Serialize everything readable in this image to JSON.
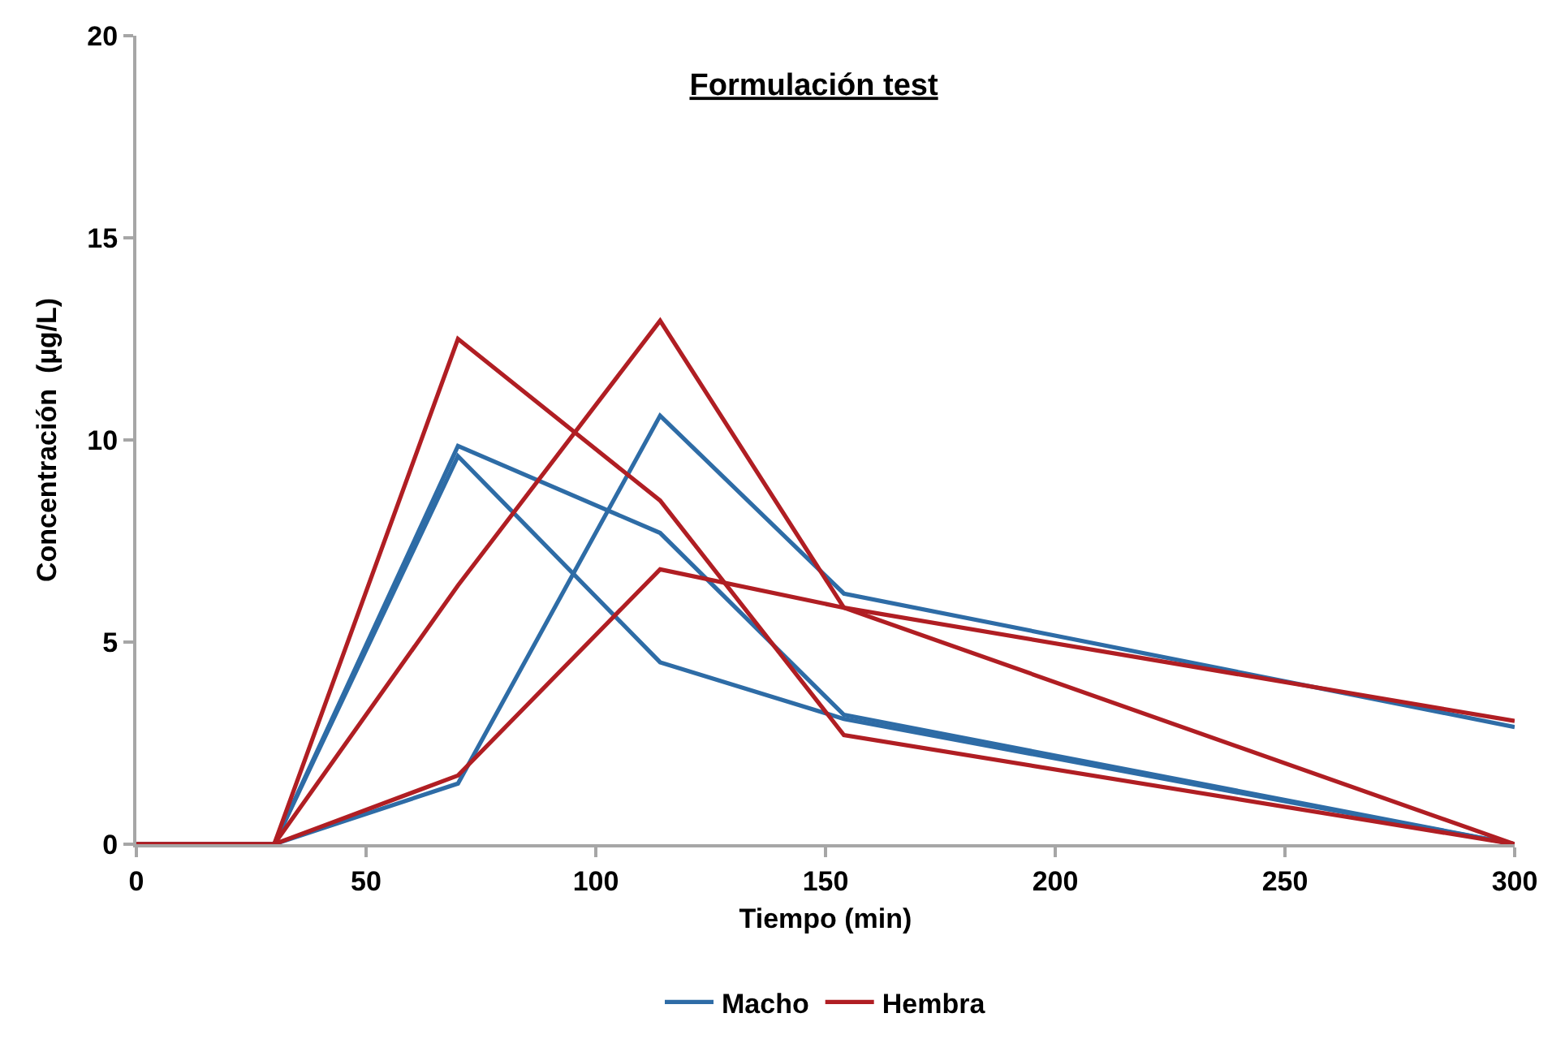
{
  "chart_data": {
    "type": "line",
    "title": "Formulación test",
    "xlabel": "Tiempo (min)",
    "ylabel": "Concentración  (µg/L)",
    "x": [
      0,
      30,
      70,
      114,
      154,
      300
    ],
    "series": [
      {
        "name": "Macho",
        "color": "#2e6ca6",
        "values": [
          0,
          0,
          9.6,
          4.5,
          3.1,
          0
        ]
      },
      {
        "color": "#2e6ca6",
        "values": [
          0,
          0,
          9.85,
          7.7,
          3.2,
          0
        ]
      },
      {
        "color": "#2e6ca6",
        "values": [
          0,
          0,
          1.5,
          10.6,
          6.2,
          2.9
        ]
      },
      {
        "name": "Hembra",
        "color": "#b01e23",
        "values": [
          0,
          0,
          12.5,
          8.5,
          2.7,
          0
        ]
      },
      {
        "color": "#b01e23",
        "values": [
          0,
          0,
          6.4,
          12.95,
          5.85,
          0
        ]
      },
      {
        "color": "#b01e23",
        "values": [
          0,
          0,
          1.7,
          6.8,
          5.85,
          3.05
        ]
      }
    ],
    "xlim": [
      0,
      300
    ],
    "xticks": [
      0,
      50,
      100,
      150,
      200,
      250,
      300
    ],
    "ylim": [
      0,
      20
    ],
    "yticks": [
      0,
      5,
      10,
      15,
      20
    ],
    "grid": false,
    "legend": "bottom",
    "marker": "none",
    "line_style": "solid"
  }
}
